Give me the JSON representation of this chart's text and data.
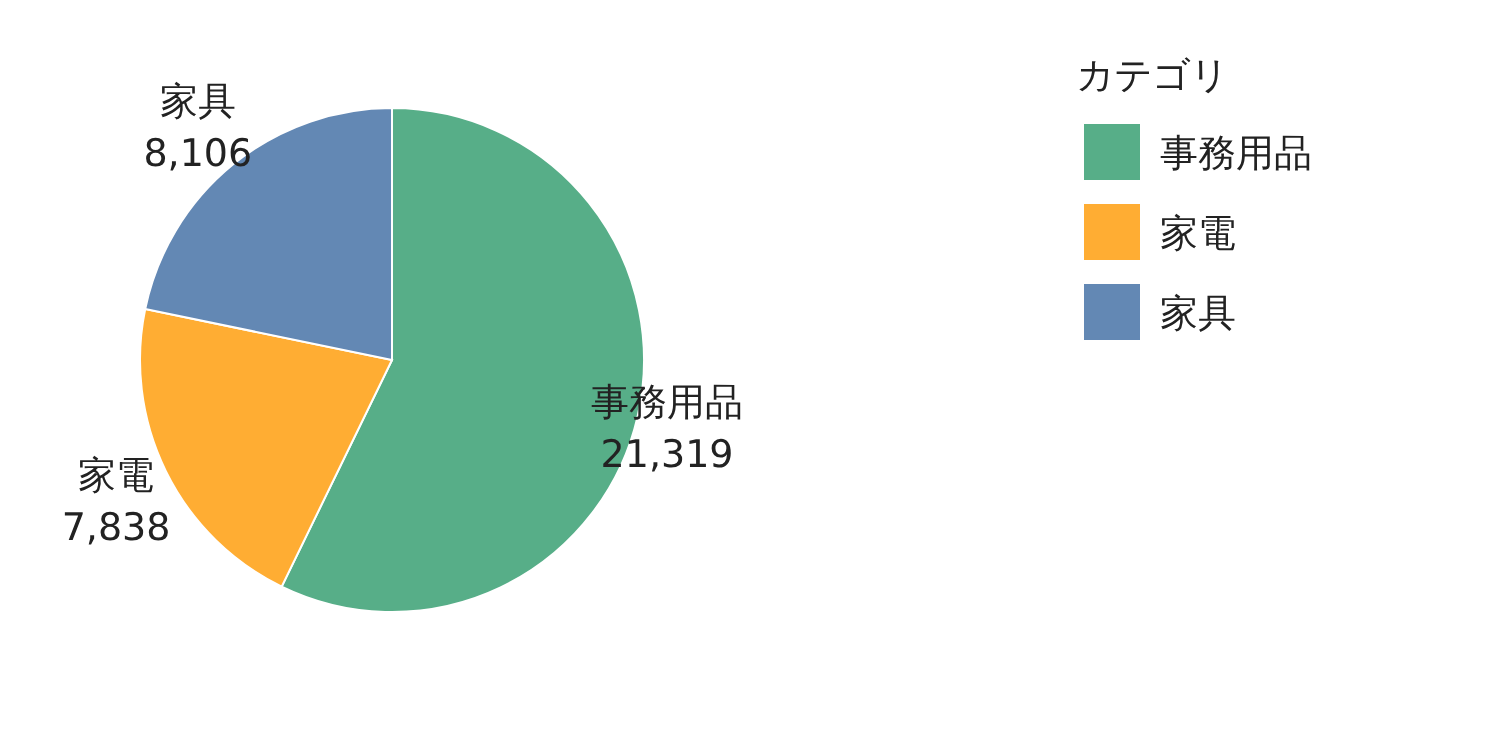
{
  "chart_data": {
    "type": "pie",
    "legend_title": "カテゴリ",
    "categories": [
      "事務用品",
      "家電",
      "家具"
    ],
    "values": [
      21319,
      7838,
      8106
    ],
    "colors": [
      "#57ae88",
      "#ffad33",
      "#6388b4"
    ],
    "value_labels": [
      "21,319",
      "7,838",
      "8,106"
    ],
    "legend": "top right"
  }
}
